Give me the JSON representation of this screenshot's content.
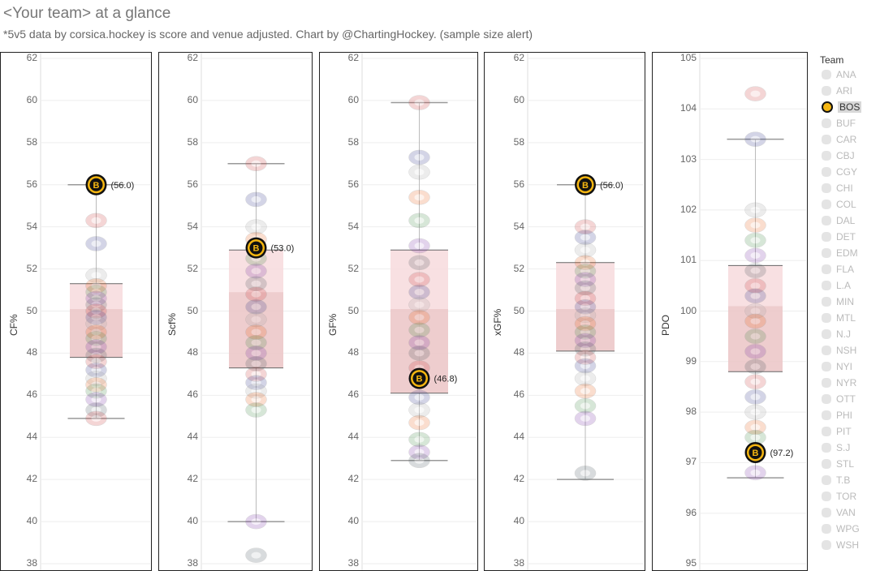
{
  "title": "<Your team> at a glance",
  "subtitle": "*5v5 data by corsica.hockey is score and venue adjusted. Chart by @ChartingHockey. (sample size alert)",
  "highlight_team": "BOS",
  "colors": {
    "box_upper": "#f7dadd",
    "box_lower": "#ebc4c6",
    "whisker": "#bbbbbb",
    "grid": "#eeeeee",
    "bruins_gold": "#f5b611",
    "bruins_black": "#111111",
    "ghost": "#d8d8d8"
  },
  "legend": {
    "title": "Team",
    "teams": [
      "ANA",
      "ARI",
      "BOS",
      "BUF",
      "CAR",
      "CBJ",
      "CGY",
      "CHI",
      "COL",
      "DAL",
      "DET",
      "EDM",
      "FLA",
      "L.A",
      "MIN",
      "MTL",
      "N.J",
      "NSH",
      "NYI",
      "NYR",
      "OTT",
      "PHI",
      "PIT",
      "S.J",
      "STL",
      "T.B",
      "TOR",
      "VAN",
      "WPG",
      "WSH"
    ]
  },
  "chart_data": [
    {
      "type": "box",
      "ylabel": "CF%",
      "ylim": [
        38,
        62
      ],
      "ticks": [
        38,
        40,
        42,
        44,
        46,
        48,
        50,
        52,
        54,
        56,
        58,
        60,
        62
      ],
      "box": {
        "min": 44.9,
        "q1": 47.8,
        "median": 50.1,
        "q3": 51.3,
        "max": 56.0
      },
      "highlight": {
        "team": "BOS",
        "value": 56.0,
        "label": "(56.0)"
      },
      "others": [
        54.3,
        53.2,
        51.7,
        51.2,
        50.9,
        50.6,
        50.3,
        50.0,
        49.7,
        49.4,
        49.0,
        48.7,
        48.3,
        47.9,
        47.6,
        47.2,
        46.8,
        46.5,
        46.2,
        45.8,
        45.3,
        44.9
      ]
    },
    {
      "type": "box",
      "ylabel": "Scf%",
      "ylim": [
        38,
        62
      ],
      "ticks": [
        38,
        40,
        42,
        44,
        46,
        48,
        50,
        52,
        54,
        56,
        58,
        60,
        62
      ],
      "box": {
        "min": 40.0,
        "q1": 47.3,
        "median": 50.9,
        "q3": 52.9,
        "max": 57.0
      },
      "highlight": {
        "team": "BOS",
        "value": 53.0,
        "label": "(53.0)"
      },
      "others": [
        57.0,
        55.3,
        54.0,
        53.4,
        52.5,
        51.9,
        51.3,
        50.8,
        50.2,
        49.6,
        49.0,
        48.5,
        48.0,
        47.5,
        47.0,
        46.6,
        46.2,
        45.8,
        45.3,
        40.0,
        38.4
      ]
    },
    {
      "type": "box",
      "ylabel": "GF%",
      "ylim": [
        38,
        62
      ],
      "ticks": [
        38,
        40,
        42,
        44,
        46,
        48,
        50,
        52,
        54,
        56,
        58,
        60,
        62
      ],
      "box": {
        "min": 42.9,
        "q1": 46.1,
        "median": 50.1,
        "q3": 52.9,
        "max": 59.9
      },
      "highlight": {
        "team": "BOS",
        "value": 46.8,
        "label": "(46.8)"
      },
      "others": [
        59.9,
        57.3,
        56.6,
        55.4,
        54.3,
        53.1,
        52.3,
        51.5,
        50.9,
        50.3,
        49.7,
        49.1,
        48.5,
        48.0,
        47.3,
        45.9,
        45.3,
        44.7,
        43.9,
        43.3,
        42.9
      ]
    },
    {
      "type": "box",
      "ylabel": "xGF%",
      "ylim": [
        38,
        62
      ],
      "ticks": [
        38,
        40,
        42,
        44,
        46,
        48,
        50,
        52,
        54,
        56,
        58,
        60,
        62
      ],
      "box": {
        "min": 42.0,
        "q1": 48.1,
        "median": 50.1,
        "q3": 52.3,
        "max": 56.0
      },
      "highlight": {
        "team": "BOS",
        "value": 56.0,
        "label": "(56.0)"
      },
      "others": [
        54.0,
        53.5,
        52.9,
        52.3,
        51.9,
        51.5,
        51.1,
        50.6,
        50.2,
        49.8,
        49.4,
        49.0,
        48.6,
        48.2,
        47.8,
        47.4,
        46.8,
        46.2,
        45.5,
        44.9,
        42.3
      ]
    },
    {
      "type": "box",
      "ylabel": "PDO",
      "ylim": [
        95,
        105
      ],
      "ticks": [
        95,
        96,
        97,
        98,
        99,
        100,
        101,
        102,
        103,
        104,
        105
      ],
      "box": {
        "min": 96.7,
        "q1": 98.8,
        "median": 100.1,
        "q3": 100.9,
        "max": 103.4
      },
      "highlight": {
        "team": "BOS",
        "value": 97.2,
        "label": "(97.2)"
      },
      "others": [
        104.3,
        103.4,
        102.0,
        101.7,
        101.4,
        101.1,
        100.8,
        100.5,
        100.3,
        100.0,
        99.8,
        99.5,
        99.2,
        98.9,
        98.6,
        98.3,
        98.0,
        97.7,
        97.5,
        96.8
      ]
    }
  ]
}
